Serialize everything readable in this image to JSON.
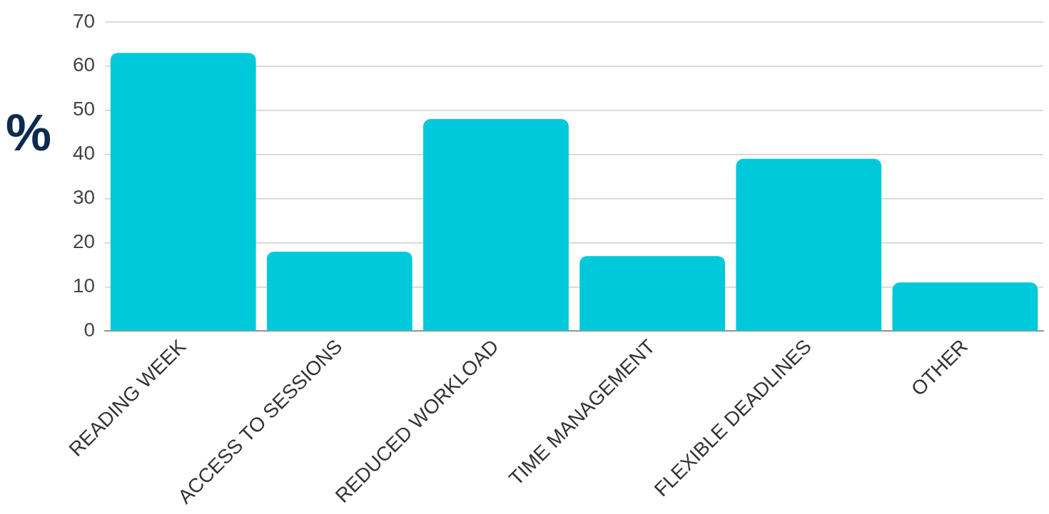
{
  "chart_data": {
    "type": "bar",
    "ylabel": "%",
    "categories": [
      "READING WEEK",
      "ACCESS TO SESSIONS",
      "REDUCED WORKLOAD",
      "TIME MANAGEMENT",
      "FLEXIBLE DEADLINES",
      "OTHER"
    ],
    "values": [
      63,
      18,
      48,
      17,
      39,
      11
    ],
    "color": "#00c9db",
    "ylim": [
      0,
      70
    ],
    "yticks": [
      0,
      10,
      20,
      30,
      40,
      50,
      60,
      70
    ],
    "grid": "y",
    "legend": false
  }
}
